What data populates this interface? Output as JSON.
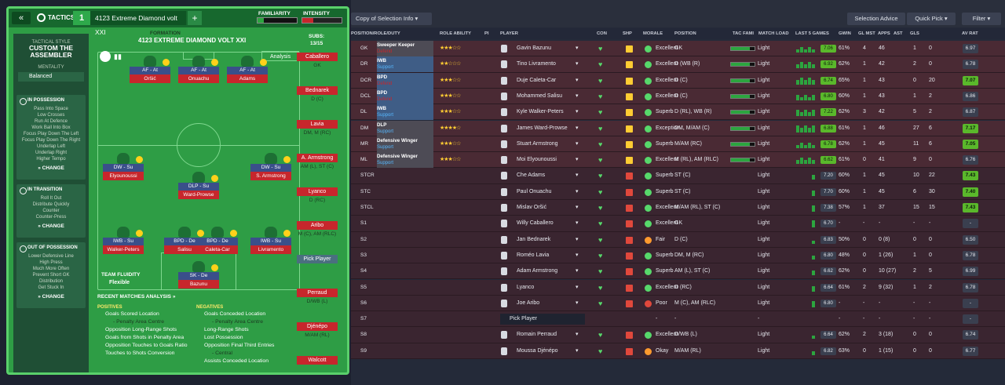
{
  "left": {
    "tactics_label": "TACTICS",
    "tactic_number": "1",
    "tactic_name": "4123 Extreme Diamond volt XXI",
    "familiarity_label": "FAMILIARITY",
    "familiarity_level": 0.15,
    "intensity_label": "INTENSITY",
    "intensity_level": 0.28,
    "tactical_style_label": "TACTICAL STYLE",
    "tactical_style": "CUSTOM THE ASSEMBLER",
    "mentality_label": "MENTALITY",
    "mentality": "Balanced",
    "in_possession_label": "IN POSSESSION",
    "in_possession": [
      "Pass Into Space",
      "Low Crosses",
      "Run At Defence",
      "Work Ball Into Box",
      "Focus Play Down The Left",
      "Focus Play Down The Right",
      "Underlap Left",
      "Underlap Right",
      "Higher Tempo"
    ],
    "in_transition_label": "IN TRANSITION",
    "in_transition": [
      "Roll It Out",
      "Distribute Quickly",
      "Counter",
      "Counter-Press"
    ],
    "out_of_possession_label": "OUT OF POSSESSION",
    "out_of_possession": [
      "Lower Defensive Line",
      "High Press",
      "Much More Often",
      "Prevent Short GK",
      "Distribution",
      "Get Stuck In"
    ],
    "change_label": "CHANGE",
    "formation_label": "FORMATION",
    "formation_name": "4123 EXTREME DIAMOND VOLT XXI",
    "subs_label": "SUBS:",
    "subs_count": "13/15",
    "analysis_label": "Analysis",
    "team_fluidity_label": "TEAM FLUIDITY",
    "team_fluidity": "Flexible",
    "positions": [
      {
        "role": "AF - At",
        "name": "Oršić"
      },
      {
        "role": "AF - At",
        "name": "Onuachu"
      },
      {
        "role": "AF - At",
        "name": "Adams"
      },
      {
        "role": "DW - Su",
        "name": "Elyounoussi"
      },
      {
        "role": "DLP - Su",
        "name": "Ward-Prowse"
      },
      {
        "role": "DW - Su",
        "name": "S. Armstrong"
      },
      {
        "role": "IWB - Su",
        "name": "Walker-Peters"
      },
      {
        "role": "BPD - De",
        "name": "Salisu"
      },
      {
        "role": "BPD - De",
        "name": "Caleta-Car"
      },
      {
        "role": "IWB - Su",
        "name": "Livramento"
      },
      {
        "role": "SK - De",
        "name": "Bazunu"
      }
    ],
    "subs": [
      {
        "name": "Caballero",
        "pos": "GK"
      },
      {
        "name": "Bednarek",
        "pos": "D (C)"
      },
      {
        "name": "Lavia",
        "pos": "DM, M (RC)"
      },
      {
        "name": "A. Armstrong",
        "pos": "AM (L), ST (C)"
      },
      {
        "name": "Lyanco",
        "pos": "D (RC)"
      },
      {
        "name": "Aribo",
        "pos": "M (C), AM (RLC)"
      },
      {
        "name": "Pick Player",
        "pos": ""
      },
      {
        "name": "Perraud",
        "pos": "D/WB (L)"
      },
      {
        "name": "Djénépo",
        "pos": "M/AM (RL)"
      },
      {
        "name": "Walcott",
        "pos": ""
      }
    ],
    "recent_label": "RECENT MATCHES ANALYSIS",
    "positives_label": "POSITIVES",
    "positives": [
      "Goals Scored Location",
      "- Penalty Area Centre",
      "Opposition Long-Range Shots",
      "Goals from Shots in Penalty Area",
      "Opposition Touches to Goals Ratio",
      "Touches to Shots Conversion"
    ],
    "negatives_label": "NEGATIVES",
    "negatives": [
      "Goals Conceded Location",
      "- Penalty Area Centre",
      "Long-Range Shots",
      "Lost Possession",
      "Opposition Final Third Entries",
      "- Central",
      "Assists Conceded Location"
    ]
  },
  "right": {
    "copy_label": "Copy of Selection Info",
    "selection_advice": "Selection Advice",
    "quick_pick": "Quick Pick",
    "filter": "Filter",
    "headers": [
      "POSITION/ROLE/DUTY",
      "ROLE ABILITY",
      "PI",
      "PLAYER",
      "CON",
      "SHP",
      "MORALE",
      "POSITION",
      "TAC FAMI",
      "MATCH LOAD",
      "LAST 5 GAMES",
      "GWIN",
      "GL MST",
      "APPS",
      "AST",
      "GLS",
      "AV RAT"
    ],
    "rows": [
      {
        "pos": "GK",
        "role": "Sweeper Keeper",
        "duty": "Defend",
        "stars": "★★★☆☆",
        "player": "Gavin Bazunu",
        "morale": "Excellent",
        "position": "GK",
        "load": "Light",
        "l5": "7.06",
        "gwin": "61%",
        "glmst": "4",
        "apps": "46",
        "ast": "1",
        "gls": "0",
        "avr": "6.97",
        "green": false,
        "num": "8"
      },
      {
        "pos": "DR",
        "role": "IWB",
        "duty": "Support",
        "stars": "★★☆☆☆",
        "player": "Tino Livramento",
        "morale": "Excellent",
        "position": "D (WB (R)",
        "load": "Light",
        "l5": "6.92",
        "gwin": "62%",
        "glmst": "1",
        "apps": "42",
        "ast": "2",
        "gls": "0",
        "avr": "6.78",
        "green": false
      },
      {
        "pos": "DCR",
        "role": "BPD",
        "duty": "Defend",
        "stars": "★★★☆☆",
        "player": "Duje Caleta-Car",
        "morale": "Excellent",
        "position": "D (C)",
        "load": "Light",
        "l5": "6.74",
        "gwin": "65%",
        "glmst": "1",
        "apps": "43",
        "ast": "0",
        "gls": "20",
        "avr": "7.07",
        "green": true
      },
      {
        "pos": "DCL",
        "role": "BPD",
        "duty": "Defend",
        "stars": "★★★☆☆",
        "player": "Mohammed Salisu",
        "morale": "Excellent",
        "position": "D (C)",
        "load": "Light",
        "l5": "6.80",
        "gwin": "60%",
        "glmst": "1",
        "apps": "43",
        "ast": "1",
        "gls": "2",
        "avr": "6.86",
        "green": false
      },
      {
        "pos": "DL",
        "role": "IWB",
        "duty": "Support",
        "stars": "★★★☆☆",
        "player": "Kyle Walker-Peters",
        "morale": "Superb",
        "position": "D (RL), WB (R)",
        "load": "Light",
        "l5": "7.22",
        "gwin": "62%",
        "glmst": "3",
        "apps": "42",
        "ast": "5",
        "gls": "2",
        "avr": "6.87",
        "green": false
      },
      {
        "pos": "DM",
        "role": "DLP",
        "duty": "Support",
        "stars": "★★★★☆",
        "player": "James Ward-Prowse",
        "morale": "Exception...",
        "position": "DM, M/AM (C)",
        "load": "Light",
        "l5": "6.88",
        "gwin": "61%",
        "glmst": "1",
        "apps": "46",
        "ast": "27",
        "gls": "6",
        "avr": "7.17",
        "green": true
      },
      {
        "pos": "MR",
        "role": "Defensive Winger",
        "duty": "Support",
        "stars": "★★★☆☆",
        "player": "Stuart Armstrong",
        "morale": "Superb",
        "position": "M/AM (RC)",
        "load": "Light",
        "l5": "6.78",
        "gwin": "62%",
        "glmst": "1",
        "apps": "45",
        "ast": "11",
        "gls": "6",
        "avr": "7.05",
        "green": true
      },
      {
        "pos": "ML",
        "role": "Defensive Winger",
        "duty": "Support",
        "stars": "★★★☆☆",
        "player": "Moi Elyounoussi",
        "morale": "Excellent",
        "position": "M (RL), AM (RLC)",
        "load": "Light",
        "l5": "6.62",
        "gwin": "61%",
        "glmst": "0",
        "apps": "41",
        "ast": "9",
        "gls": "0",
        "avr": "6.76",
        "green": false
      },
      {
        "pos": "STCR",
        "role": "Advanced Forward",
        "duty": "Attack",
        "stars": "★★★☆☆",
        "player": "Che Adams",
        "morale": "Superb",
        "position": "ST (C)",
        "load": "Light",
        "l5": "7.20",
        "gwin": "60%",
        "glmst": "1",
        "apps": "45",
        "ast": "10",
        "gls": "22",
        "avr": "7.43",
        "green": true
      },
      {
        "pos": "STC",
        "role": "Advanced Forward",
        "duty": "Attack",
        "stars": "★★★☆☆",
        "player": "Paul Onuachu",
        "morale": "Superb",
        "position": "ST (C)",
        "load": "Light",
        "l5": "7.70",
        "gwin": "60%",
        "glmst": "1",
        "apps": "45",
        "ast": "6",
        "gls": "30",
        "avr": "7.40",
        "green": true
      },
      {
        "pos": "STCL",
        "role": "Advanced Forward",
        "duty": "Attack",
        "stars": "★★★☆☆",
        "player": "Mislav Oršić",
        "morale": "Excellent",
        "position": "M/AM (RL), ST (C)",
        "load": "Light",
        "l5": "7.38",
        "gwin": "57%",
        "glmst": "1",
        "apps": "37",
        "ast": "15",
        "gls": "15",
        "avr": "7.43",
        "green": true
      },
      {
        "pos": "S1",
        "player": "Willy Caballero",
        "morale": "Excellent",
        "position": "GK",
        "load": "Light",
        "l5": "6.70",
        "gwin": "-",
        "glmst": "-",
        "apps": "-",
        "ast": "-",
        "gls": "-",
        "avr": "-",
        "green": false
      },
      {
        "pos": "S2",
        "player": "Jan Bednarek",
        "morale": "Fair",
        "position": "D (C)",
        "load": "Light",
        "l5": "6.83",
        "gwin": "50%",
        "glmst": "0",
        "apps": "0 (8)",
        "ast": "0",
        "gls": "0",
        "avr": "6.50",
        "green": false
      },
      {
        "pos": "S3",
        "player": "Roméo Lavia",
        "morale": "Superb",
        "position": "DM, M (RC)",
        "load": "Light",
        "l5": "6.80",
        "gwin": "48%",
        "glmst": "0",
        "apps": "1 (26)",
        "ast": "1",
        "gls": "0",
        "avr": "6.78",
        "green": false
      },
      {
        "pos": "S4",
        "player": "Adam Armstrong",
        "morale": "Superb",
        "position": "AM (L), ST (C)",
        "load": "Light",
        "l5": "6.62",
        "gwin": "62%",
        "glmst": "0",
        "apps": "10 (27)",
        "ast": "2",
        "gls": "5",
        "avr": "6.99",
        "green": false
      },
      {
        "pos": "S5",
        "player": "Lyanco",
        "morale": "Excellent",
        "position": "D (RC)",
        "load": "Light",
        "l5": "6.64",
        "gwin": "61%",
        "glmst": "2",
        "apps": "9 (32)",
        "ast": "1",
        "gls": "2",
        "avr": "6.78",
        "green": false
      },
      {
        "pos": "S6",
        "player": "Joe Aribo",
        "morale": "Poor",
        "position": "M (C), AM (RLC)",
        "load": "Light",
        "l5": "6.80",
        "gwin": "-",
        "glmst": "-",
        "apps": "-",
        "ast": "-",
        "gls": "-",
        "avr": "-",
        "green": false
      },
      {
        "pos": "S7",
        "player": "Pick Player",
        "morale": "-",
        "position": "-",
        "load": "-",
        "l5": "",
        "gwin": "-",
        "glmst": "-",
        "apps": "-",
        "ast": "-",
        "gls": "-",
        "avr": "-",
        "green": false
      },
      {
        "pos": "S8",
        "player": "Romain Perraud",
        "morale": "Excellent",
        "position": "D/WB (L)",
        "load": "Light",
        "l5": "6.64",
        "gwin": "62%",
        "glmst": "2",
        "apps": "3 (18)",
        "ast": "0",
        "gls": "0",
        "avr": "6.74",
        "green": false
      },
      {
        "pos": "S9",
        "player": "Moussa Djénépo",
        "morale": "Okay",
        "position": "M/AM (RL)",
        "load": "Light",
        "l5": "6.82",
        "gwin": "63%",
        "glmst": "0",
        "apps": "1 (15)",
        "ast": "0",
        "gls": "0",
        "avr": "6.77",
        "green": false
      }
    ]
  }
}
